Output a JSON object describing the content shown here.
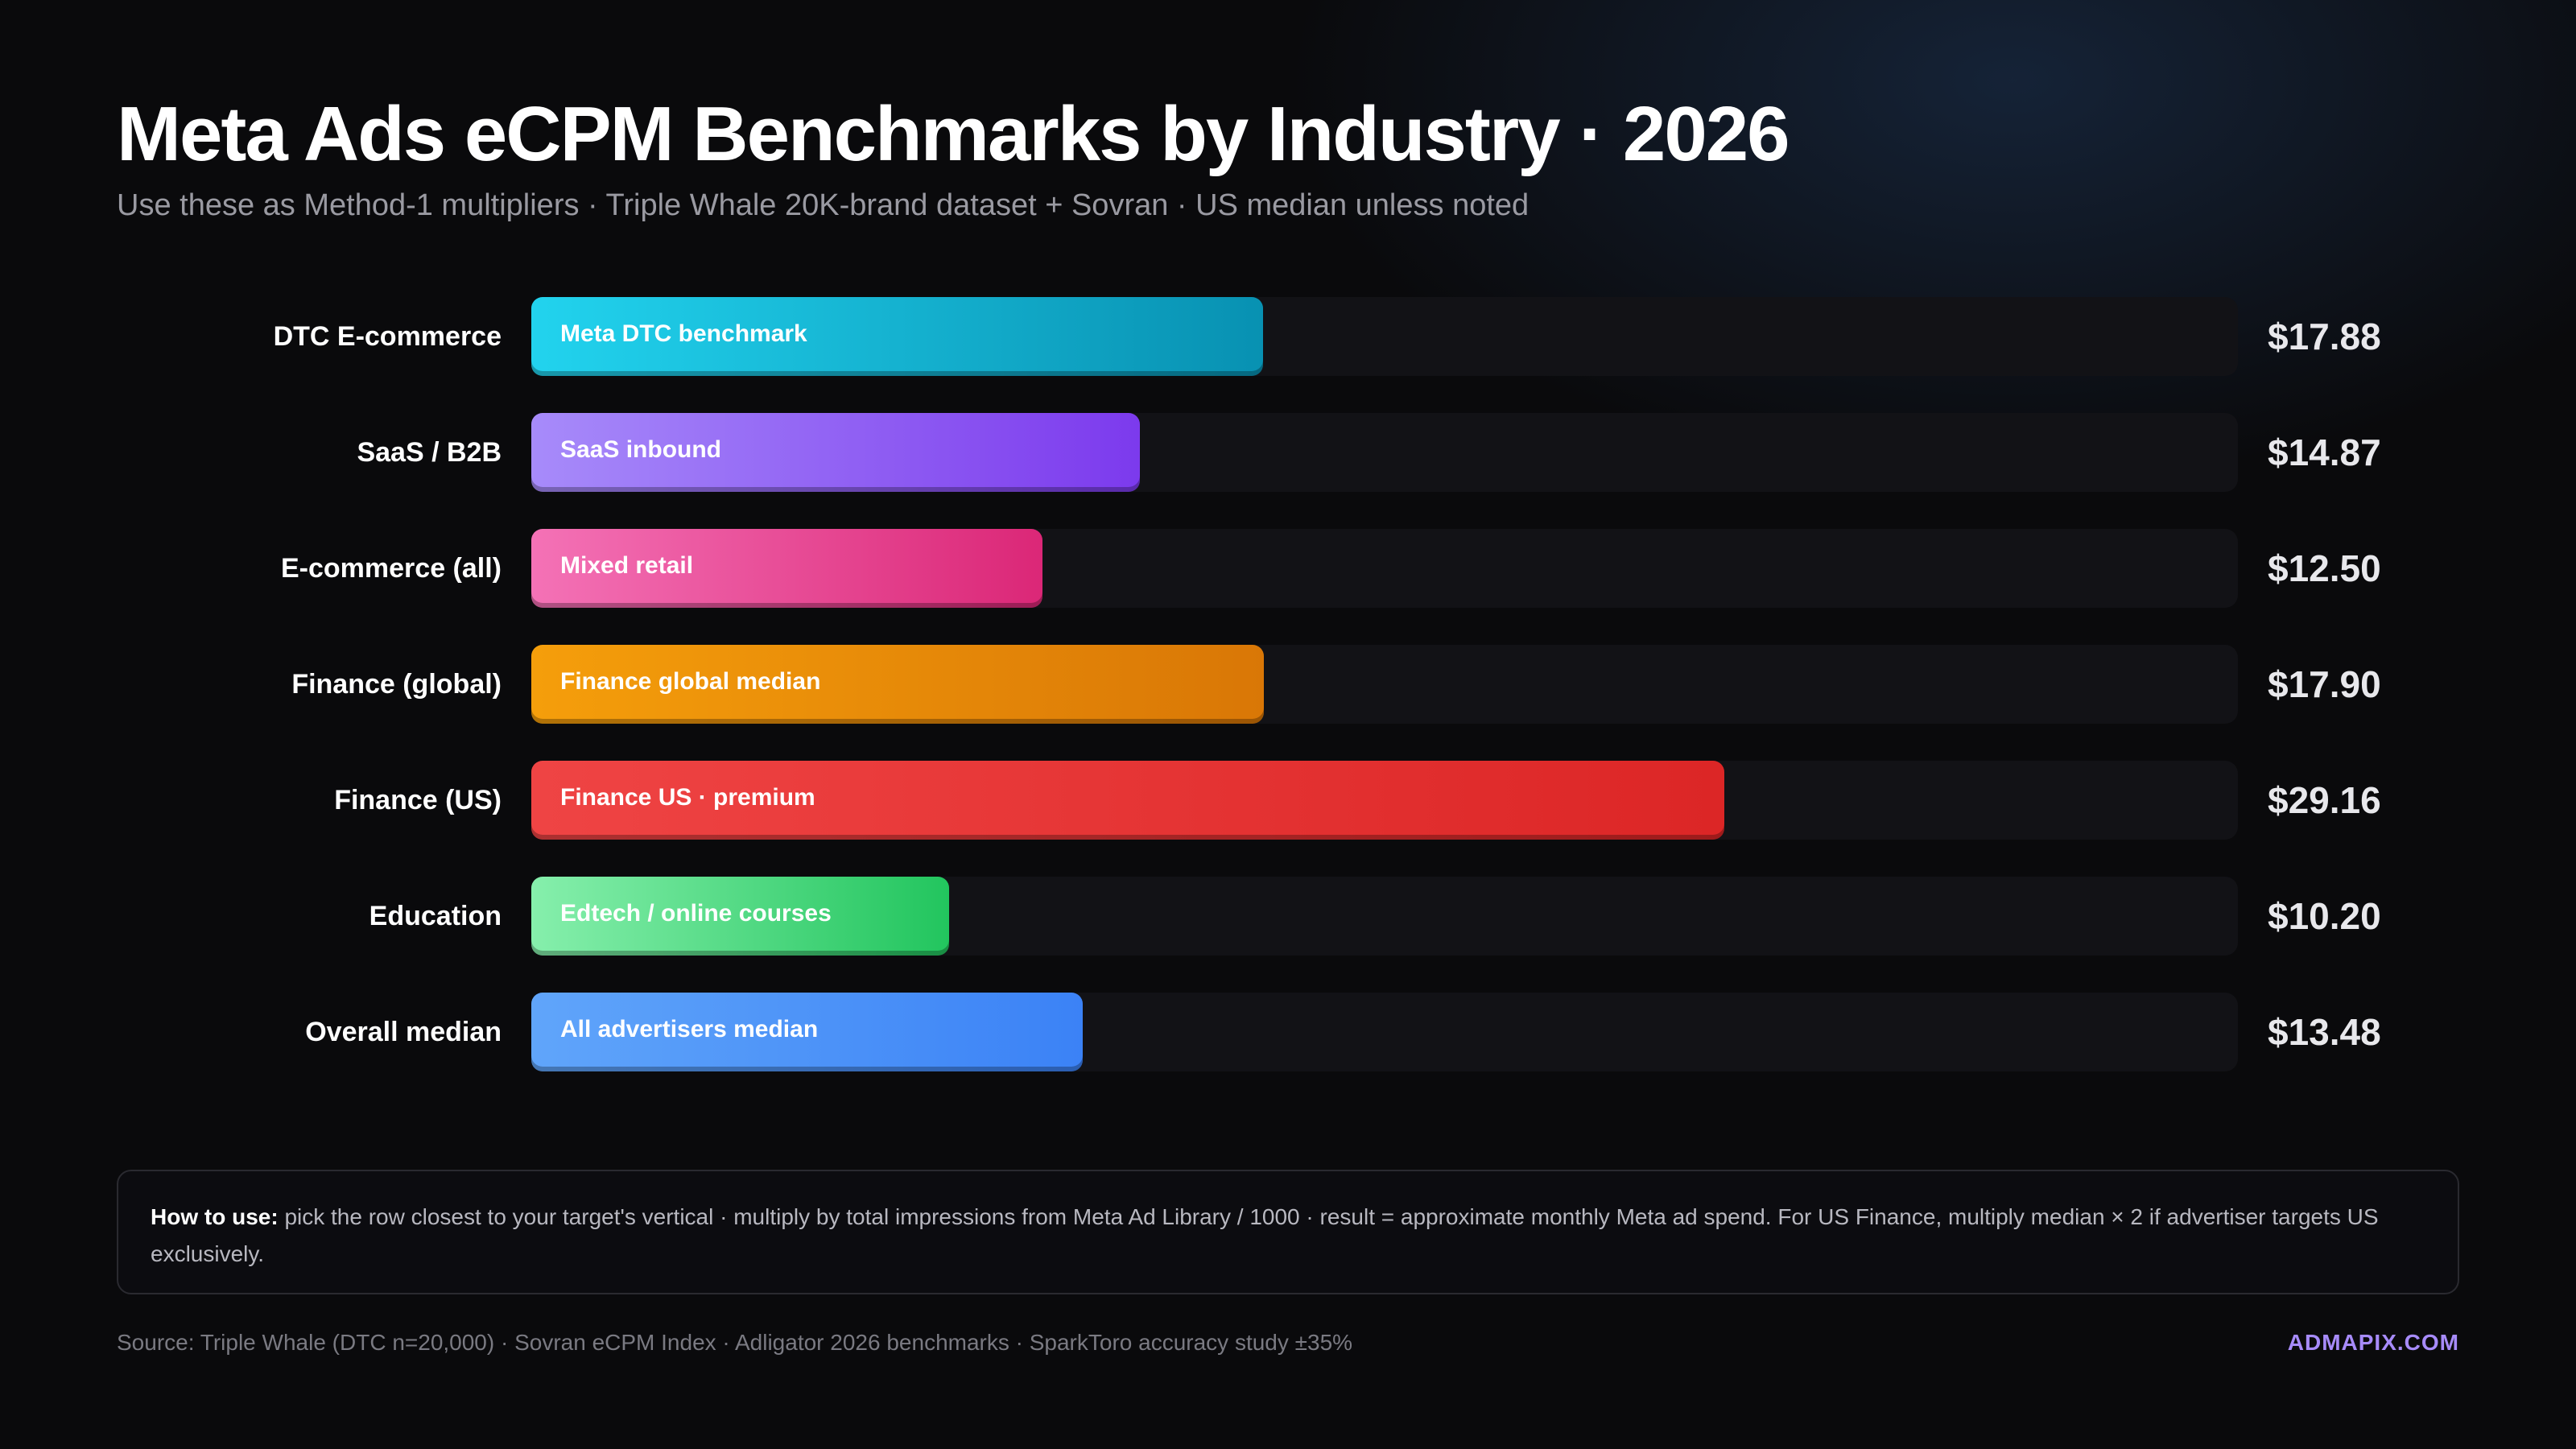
{
  "header": {
    "title": "Meta Ads eCPM Benchmarks by Industry · 2026",
    "subtitle": "Use these as Method-1 multipliers · Triple Whale 20K-brand dataset + Sovran · US median unless noted"
  },
  "chart_data": {
    "type": "bar",
    "orientation": "horizontal",
    "title": "Meta Ads eCPM Benchmarks by Industry · 2026",
    "xlim": [
      0,
      41.7
    ],
    "grid": false,
    "categories": [
      "DTC E-commerce",
      "SaaS / B2B",
      "E-commerce (all)",
      "Finance (global)",
      "Finance (US)",
      "Education",
      "Overall median"
    ],
    "bar_labels": [
      "Meta DTC benchmark",
      "SaaS inbound",
      "Mixed retail",
      "Finance global median",
      "Finance US · premium",
      "Edtech / online courses",
      "All advertisers median"
    ],
    "values": [
      17.88,
      14.87,
      12.5,
      17.9,
      29.16,
      10.2,
      13.48
    ],
    "value_labels": [
      "$17.88",
      "$14.87",
      "$12.50",
      "$17.90",
      "$29.16",
      "$10.20",
      "$13.48"
    ],
    "colors": [
      [
        "#22d3ee",
        "#0891b2"
      ],
      [
        "#a78bfa",
        "#7c3aed"
      ],
      [
        "#f472b6",
        "#db2777"
      ],
      [
        "#f59e0b",
        "#d97706"
      ],
      [
        "#ef4444",
        "#dc2626"
      ],
      [
        "#86efac",
        "#22c55e"
      ],
      [
        "#60a5fa",
        "#3b82f6"
      ]
    ]
  },
  "info": {
    "lead": "How to use:",
    "text": " pick the row closest to your target's vertical · multiply by total impressions from Meta Ad Library / 1000 · result = approximate monthly Meta ad spend. For US Finance, multiply median × 2 if advertiser targets US exclusively."
  },
  "footer": {
    "source": "Source: Triple Whale (DTC n=20,000) · Sovran eCPM Index · Adligator 2026 benchmarks · SparkToro accuracy study ±35%",
    "brand": "ADMAPIX.COM"
  }
}
